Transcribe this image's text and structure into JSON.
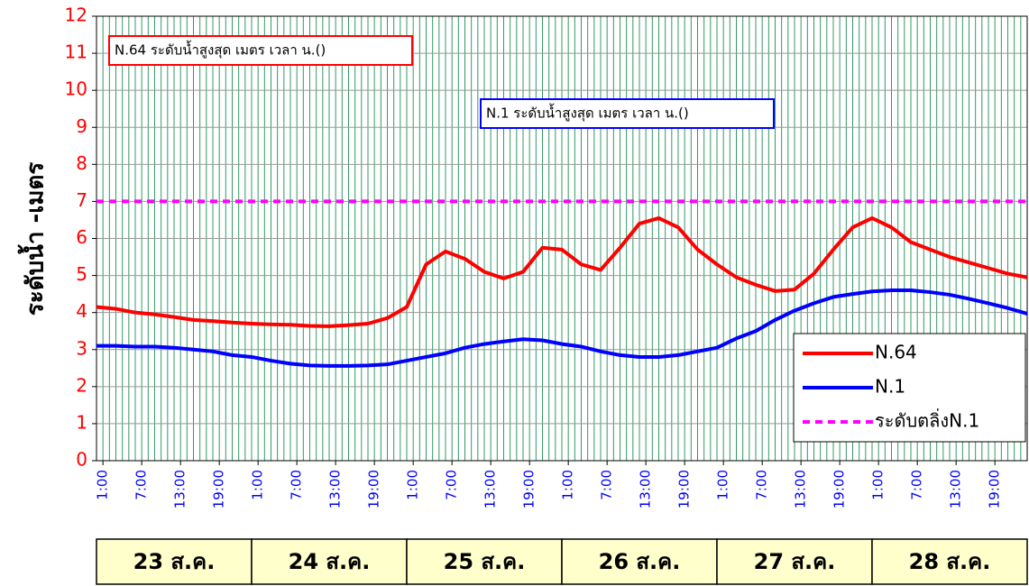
{
  "chart_data": {
    "type": "line",
    "y_label": "ระดับน้ำ -เมตร",
    "annotations": [
      "N.64 ระดับน้ำสูงสุด  เมตร เวลา  น.()",
      "N.1 ระดับน้ำสูงสุด  เมตร เวลา  น.()"
    ],
    "x": [
      0,
      3,
      6,
      9,
      12,
      15,
      18,
      21,
      24,
      27,
      30,
      33,
      36,
      39,
      42,
      45,
      48,
      51,
      54,
      57,
      60,
      63,
      66,
      69,
      72,
      75,
      78,
      81,
      84,
      87,
      90,
      93,
      96,
      99,
      102,
      105,
      108,
      111,
      114,
      117,
      120,
      123,
      126,
      129,
      132,
      135,
      138,
      141,
      144
    ],
    "series": [
      {
        "name": "N.64",
        "color": "#ff0000",
        "values": [
          4.15,
          4.1,
          4.0,
          3.95,
          3.88,
          3.8,
          3.77,
          3.73,
          3.7,
          3.68,
          3.67,
          3.64,
          3.63,
          3.66,
          3.7,
          3.85,
          4.15,
          5.3,
          5.65,
          5.45,
          5.1,
          4.92,
          5.1,
          5.75,
          5.7,
          5.3,
          5.15,
          5.75,
          6.4,
          6.55,
          6.3,
          5.7,
          5.3,
          4.95,
          4.75,
          4.58,
          4.62,
          5.05,
          5.7,
          6.3,
          6.55,
          6.3,
          5.9,
          5.7,
          5.5,
          5.35,
          5.2,
          5.05,
          4.95
        ]
      },
      {
        "name": "N.1",
        "color": "#0000ff",
        "values": [
          3.1,
          3.1,
          3.08,
          3.08,
          3.05,
          3.0,
          2.95,
          2.85,
          2.8,
          2.7,
          2.62,
          2.57,
          2.56,
          2.56,
          2.57,
          2.6,
          2.7,
          2.8,
          2.9,
          3.05,
          3.15,
          3.22,
          3.28,
          3.25,
          3.15,
          3.08,
          2.95,
          2.85,
          2.8,
          2.8,
          2.85,
          2.95,
          3.05,
          3.3,
          3.5,
          3.8,
          4.05,
          4.25,
          4.42,
          4.5,
          4.57,
          4.6,
          4.6,
          4.55,
          4.48,
          4.37,
          4.25,
          4.12,
          3.97
        ]
      }
    ],
    "threshold": {
      "name": "ระดับตลิ่งN.1",
      "value": 7,
      "color": "#ff00ff"
    },
    "xlim": [
      0,
      144
    ],
    "xticks": [
      {
        "value": 1,
        "label": "1:00"
      },
      {
        "value": 7,
        "label": "7:00"
      },
      {
        "value": 13,
        "label": "13:00"
      },
      {
        "value": 19,
        "label": "19:00"
      },
      {
        "value": 25,
        "label": "1:00"
      },
      {
        "value": 31,
        "label": "7:00"
      },
      {
        "value": 37,
        "label": "13:00"
      },
      {
        "value": 43,
        "label": "19:00"
      },
      {
        "value": 49,
        "label": "1:00"
      },
      {
        "value": 55,
        "label": "7:00"
      },
      {
        "value": 61,
        "label": "13:00"
      },
      {
        "value": 67,
        "label": "19:00"
      },
      {
        "value": 73,
        "label": "1:00"
      },
      {
        "value": 79,
        "label": "7:00"
      },
      {
        "value": 85,
        "label": "13:00"
      },
      {
        "value": 91,
        "label": "19:00"
      },
      {
        "value": 97,
        "label": "1:00"
      },
      {
        "value": 103,
        "label": "7:00"
      },
      {
        "value": 109,
        "label": "13:00"
      },
      {
        "value": 115,
        "label": "19:00"
      },
      {
        "value": 121,
        "label": "1:00"
      },
      {
        "value": 127,
        "label": "7:00"
      },
      {
        "value": 133,
        "label": "13:00"
      },
      {
        "value": 139,
        "label": "19:00"
      }
    ],
    "ylim": [
      0,
      12
    ],
    "yticks": [
      0,
      1,
      2,
      3,
      4,
      5,
      6,
      7,
      8,
      9,
      10,
      11,
      12
    ],
    "day_labels": [
      "23 ส.ค.",
      "24 ส.ค.",
      "25 ส.ค.",
      "26 ส.ค.",
      "27 ส.ค.",
      "28 ส.ค."
    ],
    "grid": true,
    "legend": "lower right"
  }
}
